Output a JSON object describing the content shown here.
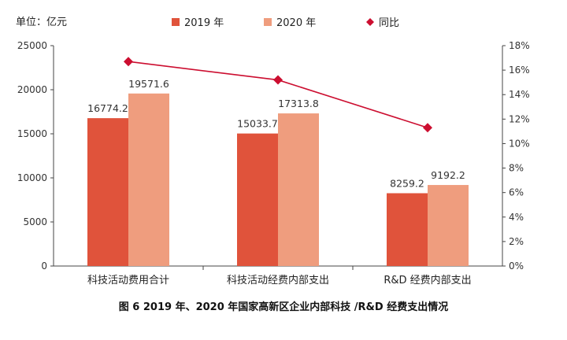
{
  "chart_data": {
    "type": "bar",
    "unit_label": "单位：亿元",
    "caption": "图 6   2019 年、2020 年国家高新区企业内部科技 /R&D 经费支出情况",
    "categories": [
      "科技活动费用合计",
      "科技活动经费内部支出",
      "R&D 经费内部支出"
    ],
    "series": [
      {
        "name": "2019 年",
        "type": "bar",
        "axis": "left",
        "color": "#e0533b",
        "values": [
          16774.2,
          15033.7,
          8259.2
        ],
        "labels": [
          "16774.2",
          "15033.7",
          "8259.2"
        ]
      },
      {
        "name": "2020 年",
        "type": "bar",
        "axis": "left",
        "color": "#ef9d7e",
        "values": [
          19571.6,
          17313.8,
          9192.2
        ],
        "labels": [
          "19571.6",
          "17313.8",
          "9192.2"
        ]
      },
      {
        "name": "同比",
        "type": "line",
        "axis": "right",
        "color": "#cc0e30",
        "values": [
          16.7,
          15.2,
          11.3
        ],
        "marker": "diamond"
      }
    ],
    "y_left": {
      "range": [
        0,
        25000
      ],
      "ticks": [
        "0",
        "5000",
        "10000",
        "15000",
        "20000",
        "25000"
      ]
    },
    "y_right": {
      "range": [
        0,
        18
      ],
      "unit": "%",
      "ticks": [
        "0%",
        "2%",
        "4%",
        "6%",
        "8%",
        "10%",
        "12%",
        "14%",
        "16%",
        "18%"
      ]
    },
    "legend_position": "top",
    "grid": false
  }
}
